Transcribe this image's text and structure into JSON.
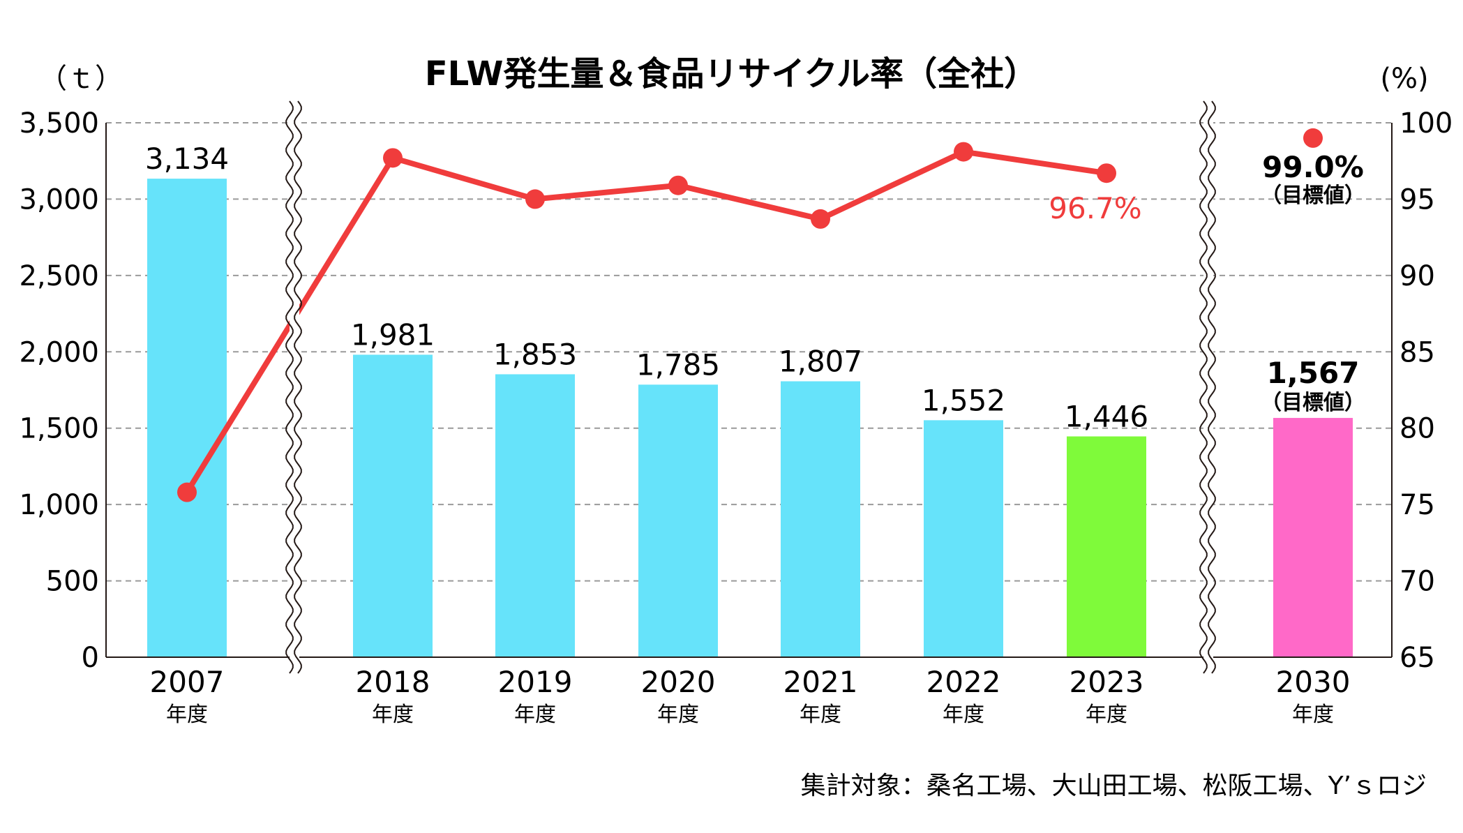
{
  "chart_data": {
    "type": "bar",
    "title": "FLW発生量＆食品リサイクル率（全社）",
    "left_axis": {
      "unit_label": "（ｔ）",
      "ylim": [
        0,
        3500
      ],
      "ticks": [
        0,
        500,
        1000,
        1500,
        2000,
        2500,
        3000,
        3500
      ],
      "tick_labels": [
        "0",
        "500",
        "1,000",
        "1,500",
        "2,000",
        "2,500",
        "3,000",
        "3,500"
      ]
    },
    "right_axis": {
      "unit_label": "(%)",
      "ylim": [
        65,
        100
      ],
      "ticks": [
        65,
        70,
        75,
        80,
        85,
        90,
        95,
        100
      ],
      "tick_labels": [
        "65",
        "70",
        "75",
        "80",
        "85",
        "90",
        "95",
        "100"
      ]
    },
    "grid": "dashed horizontal",
    "axis_break_after": [
      "2007",
      "2023"
    ],
    "categories": [
      "2007",
      "2018",
      "2019",
      "2020",
      "2021",
      "2022",
      "2023",
      "2030"
    ],
    "category_suffix": "年度",
    "series": [
      {
        "type": "bar",
        "axis": "left",
        "values": [
          3134,
          1981,
          1853,
          1785,
          1807,
          1552,
          1446,
          1567
        ],
        "labels": [
          "3,134",
          "1,981",
          "1,853",
          "1,785",
          "1,807",
          "1,552",
          "1,446",
          "1,567"
        ],
        "colors": [
          "#66e3fa",
          "#66e3fa",
          "#66e3fa",
          "#66e3fa",
          "#66e3fa",
          "#66e3fa",
          "#7ffa3a",
          "#ff69c8"
        ]
      },
      {
        "type": "line",
        "axis": "right",
        "color": "#f03c3c",
        "values": [
          75.8,
          97.7,
          95.0,
          95.9,
          93.7,
          98.1,
          96.7,
          null
        ],
        "highlight_label": "96.7%",
        "target": {
          "category": "2030",
          "value": 99.0,
          "label": "99.0%",
          "sub_label": "（目標値）"
        }
      }
    ],
    "bar_target_sub_label": "（目標値）"
  },
  "footnote": "集計対象：桑名工場、大山田工場、松阪工場、Y’ｓロジ"
}
